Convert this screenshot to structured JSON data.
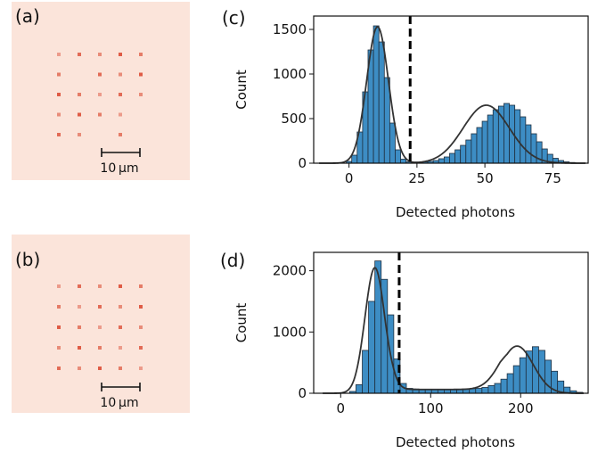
{
  "panels": {
    "a": {
      "label": "(a)",
      "scalebar": "10 μm"
    },
    "b": {
      "label": "(b)",
      "scalebar": "10 μm"
    },
    "c": {
      "label": "(c)"
    },
    "d": {
      "label": "(d)"
    }
  },
  "colors": {
    "bar": "#3d8dc4",
    "bar_edge": "#1f2f3f",
    "fit": "#333333",
    "threshold": "#000000",
    "image_bg": "#fbe4da",
    "spot": "#d9432a"
  },
  "chart_data": [
    {
      "panel": "c",
      "type": "bar",
      "xlabel": "Detected photons",
      "ylabel": "Count",
      "xlim": [
        -13,
        88
      ],
      "ylim": [
        0,
        1650
      ],
      "xticks": [
        0,
        25,
        50,
        75
      ],
      "yticks": [
        0,
        500,
        1000,
        1500
      ],
      "threshold": 22.5,
      "bins": {
        "start": -1,
        "width": 2
      },
      "values": [
        20,
        90,
        350,
        800,
        1270,
        1540,
        1360,
        960,
        450,
        150,
        45,
        15,
        10,
        10,
        15,
        20,
        30,
        50,
        70,
        110,
        150,
        200,
        260,
        330,
        400,
        470,
        540,
        600,
        640,
        670,
        650,
        600,
        520,
        430,
        330,
        240,
        160,
        100,
        55,
        30,
        15,
        8
      ],
      "fit": [
        {
          "amp": 1530,
          "mu": 10.5,
          "sigma": 4.0
        },
        {
          "amp": 650,
          "mu": 50.5,
          "sigma": 8.5
        }
      ],
      "fit_range": [
        -11,
        87
      ]
    },
    {
      "panel": "d",
      "type": "bar",
      "xlabel": "Detected photons",
      "ylabel": "Count",
      "xlim": [
        -30,
        275
      ],
      "ylim": [
        0,
        2300
      ],
      "xticks": [
        0,
        100,
        200
      ],
      "yticks": [
        0,
        1000,
        2000
      ],
      "threshold": 65,
      "bins": {
        "start": 10,
        "width": 7
      },
      "values": [
        30,
        140,
        700,
        1500,
        2160,
        1860,
        1280,
        560,
        160,
        80,
        70,
        65,
        65,
        65,
        65,
        65,
        65,
        65,
        70,
        75,
        80,
        95,
        125,
        160,
        230,
        320,
        450,
        580,
        690,
        760,
        700,
        540,
        360,
        200,
        100,
        40,
        15
      ],
      "fit": [
        {
          "amp": 2050,
          "mu": 38,
          "sigma": 11
        },
        {
          "amp": 770,
          "mu": 196,
          "sigma": 18
        }
      ],
      "plateau": {
        "level": 62,
        "from": 50,
        "to": 185
      },
      "fit_range": [
        -20,
        270
      ]
    }
  ]
}
